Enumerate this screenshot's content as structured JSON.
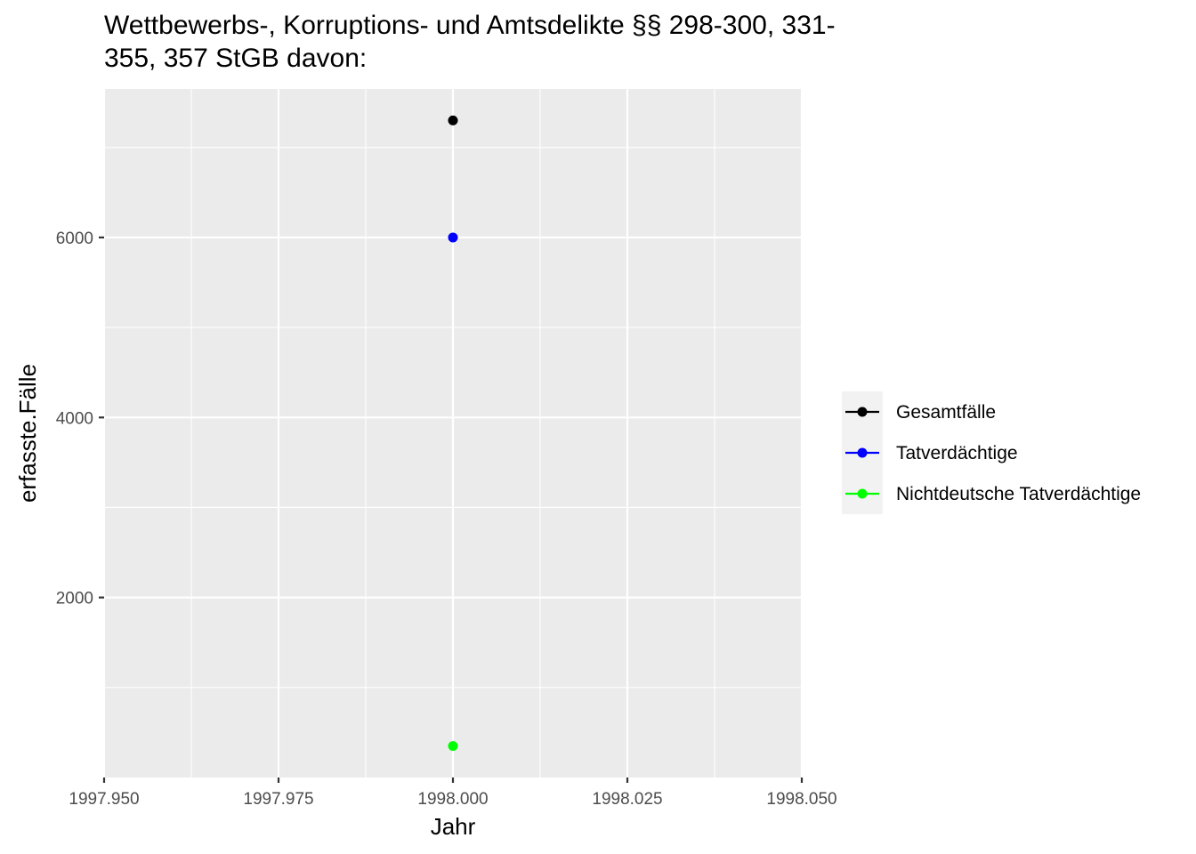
{
  "chart_data": {
    "type": "scatter",
    "title_lines": [
      "Wettbewerbs-, Korruptions- und Amtsdelikte §§ 298-300, 331-",
      "355, 357 StGB davon:"
    ],
    "xlabel": "Jahr",
    "ylabel": "erfasste.Fälle",
    "xlim": [
      1997.95,
      1998.05
    ],
    "ylim": [
      0,
      7650
    ],
    "x_ticks": [
      1997.95,
      1997.975,
      1998.0,
      1998.025,
      1998.05
    ],
    "x_tick_labels": [
      "1997.950",
      "1997.975",
      "1998.000",
      "1998.025",
      "1998.050"
    ],
    "y_ticks": [
      2000,
      4000,
      6000
    ],
    "y_tick_labels": [
      "2000",
      "4000",
      "6000"
    ],
    "grid": true,
    "legend_position": "right",
    "series": [
      {
        "name": "Gesamtfälle",
        "color": "#000000",
        "x": [
          1998.0
        ],
        "y": [
          7300
        ]
      },
      {
        "name": "Tatverdächtige",
        "color": "#0000ff",
        "x": [
          1998.0
        ],
        "y": [
          6000
        ]
      },
      {
        "name": "Nichtdeutsche Tatverdächtige",
        "color": "#00ff00",
        "x": [
          1998.0
        ],
        "y": [
          350
        ]
      }
    ]
  }
}
